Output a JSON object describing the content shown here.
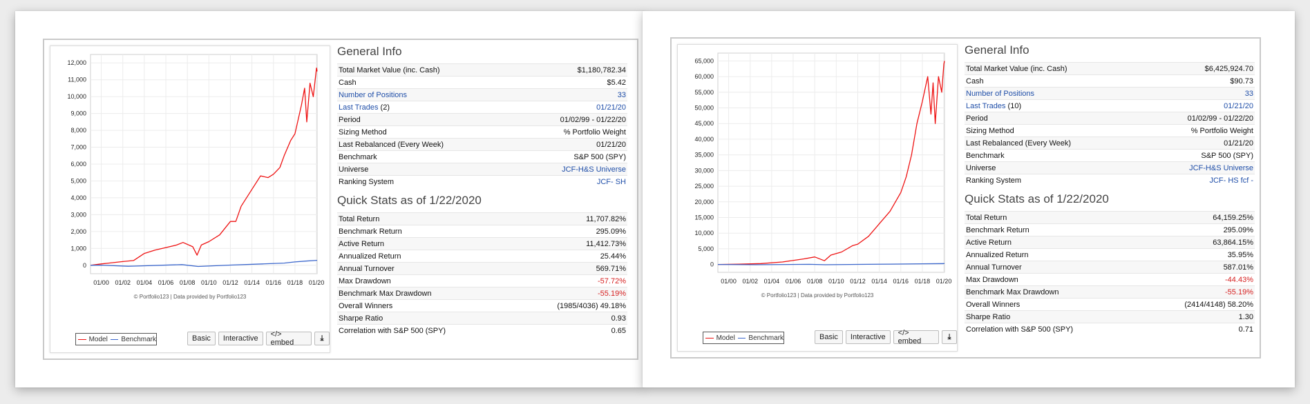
{
  "colors": {
    "model": "#ee1111",
    "benchmark": "#3a66cc",
    "link": "#1f4ea8",
    "negative": "#d62020"
  },
  "portfolios": [
    {
      "general_info": {
        "heading": "General Info",
        "rows": [
          {
            "label": "Total Market Value (inc. Cash)",
            "value": "$1,180,782.34"
          },
          {
            "label": "Cash",
            "value": "$5.42"
          },
          {
            "label": "Number of Positions",
            "value": "33"
          },
          {
            "label": "Last Trades",
            "count": "(2)",
            "value": "01/21/20"
          },
          {
            "label": "Period",
            "value": "01/02/99 - 01/22/20"
          },
          {
            "label": "Sizing Method",
            "value": "% Portfolio Weight"
          },
          {
            "label": "Last Rebalanced (Every Week)",
            "value": "01/21/20"
          },
          {
            "label": "Benchmark",
            "value": "S&P 500 (SPY)"
          },
          {
            "label": "Universe",
            "value": "JCF-H&S Universe"
          },
          {
            "label": "Ranking System",
            "value": "JCF- SH"
          }
        ]
      },
      "quick_stats": {
        "heading": "Quick Stats as of 1/22/2020",
        "rows": [
          {
            "label": "Total Return",
            "value": "11,707.82%"
          },
          {
            "label": "Benchmark Return",
            "value": "295.09%"
          },
          {
            "label": "Active Return",
            "value": "11,412.73%"
          },
          {
            "label": "Annualized Return",
            "value": "25.44%"
          },
          {
            "label": "Annual Turnover",
            "value": "569.71%"
          },
          {
            "label": "Max Drawdown",
            "value": "-57.72%"
          },
          {
            "label": "Benchmark Max Drawdown",
            "value": "-55.19%"
          },
          {
            "label": "Overall Winners",
            "value": "(1985/4036) 49.18%"
          },
          {
            "label": "Sharpe Ratio",
            "value": "0.93"
          },
          {
            "label": "Correlation with S&P 500 (SPY)",
            "value": "0.65"
          }
        ]
      },
      "credit": "© Portfolio123 | Data provided by Portfolio123",
      "legend": {
        "model": "Model",
        "benchmark": "Benchmark"
      },
      "buttons": {
        "basic": "Basic",
        "interactive": "Interactive",
        "embed": "</> embed",
        "download_icon": "download-icon"
      },
      "chart_data": {
        "type": "line",
        "y_ticks": [
          "12,000",
          "11,000",
          "10,000",
          "9,000",
          "8,000",
          "7,000",
          "6,000",
          "5,000",
          "4,000",
          "3,000",
          "2,000",
          "1,000",
          "0"
        ],
        "x_ticks": [
          "01/00",
          "01/02",
          "01/04",
          "01/06",
          "01/08",
          "01/10",
          "01/12",
          "01/14",
          "01/16",
          "01/18",
          "01/20"
        ],
        "ylim": [
          -500,
          12500
        ],
        "xlim": [
          1999.0,
          2020.06
        ],
        "grid": true,
        "legend_position": "bottom-left",
        "series": [
          {
            "name": "Model",
            "x": [
              1999.0,
              2000.0,
              2001.0,
              2002.0,
              2003.0,
              2004.0,
              2005.0,
              2006.0,
              2007.0,
              2007.6,
              2008.5,
              2008.9,
              2009.3,
              2010.0,
              2011.0,
              2012.0,
              2012.5,
              2013.0,
              2014.0,
              2014.8,
              2015.5,
              2016.0,
              2016.6,
              2017.0,
              2017.6,
              2018.0,
              2018.6,
              2018.9,
              2019.1,
              2019.4,
              2019.7,
              2020.0,
              2020.06
            ],
            "y": [
              0,
              80,
              150,
              220,
              280,
              700,
              900,
              1050,
              1200,
              1350,
              1100,
              600,
              1200,
              1400,
              1800,
              2600,
              2600,
              3500,
              4500,
              5300,
              5200,
              5400,
              5800,
              6500,
              7400,
              7800,
              9500,
              10500,
              8500,
              10800,
              10000,
              11700,
              11500
            ]
          },
          {
            "name": "Benchmark",
            "x": [
              1999.0,
              2000.0,
              2002.5,
              2003.0,
              2007.5,
              2009.0,
              2012.0,
              2015.0,
              2017.0,
              2018.0,
              2019.0,
              2020.06
            ],
            "y": [
              0,
              5,
              -60,
              -50,
              40,
              -70,
              10,
              80,
              130,
              200,
              250,
              295
            ]
          }
        ]
      }
    },
    {
      "general_info": {
        "heading": "General Info",
        "rows": [
          {
            "label": "Total Market Value (inc. Cash)",
            "value": "$6,425,924.70"
          },
          {
            "label": "Cash",
            "value": "$90.73"
          },
          {
            "label": "Number of Positions",
            "value": "33"
          },
          {
            "label": "Last Trades",
            "count": "(10)",
            "value": "01/21/20"
          },
          {
            "label": "Period",
            "value": "01/02/99 - 01/22/20"
          },
          {
            "label": "Sizing Method",
            "value": "% Portfolio Weight"
          },
          {
            "label": "Last Rebalanced (Every Week)",
            "value": "01/21/20"
          },
          {
            "label": "Benchmark",
            "value": "S&P 500 (SPY)"
          },
          {
            "label": "Universe",
            "value": "JCF-H&S Universe"
          },
          {
            "label": "Ranking System",
            "value": "JCF- HS fcf -"
          }
        ]
      },
      "quick_stats": {
        "heading": "Quick Stats as of 1/22/2020",
        "rows": [
          {
            "label": "Total Return",
            "value": "64,159.25%"
          },
          {
            "label": "Benchmark Return",
            "value": "295.09%"
          },
          {
            "label": "Active Return",
            "value": "63,864.15%"
          },
          {
            "label": "Annualized Return",
            "value": "35.95%"
          },
          {
            "label": "Annual Turnover",
            "value": "587.01%"
          },
          {
            "label": "Max Drawdown",
            "value": "-44.43%"
          },
          {
            "label": "Benchmark Max Drawdown",
            "value": "-55.19%"
          },
          {
            "label": "Overall Winners",
            "value": "(2414/4148) 58.20%"
          },
          {
            "label": "Sharpe Ratio",
            "value": "1.30"
          },
          {
            "label": "Correlation with S&P 500 (SPY)",
            "value": "0.71"
          }
        ]
      },
      "credit": "© Portfolio123 | Data provided by Portfolio123",
      "legend": {
        "model": "Model",
        "benchmark": "Benchmark"
      },
      "buttons": {
        "basic": "Basic",
        "interactive": "Interactive",
        "embed": "</> embed",
        "download_icon": "download-icon"
      },
      "chart_data": {
        "type": "line",
        "y_ticks": [
          "65,000",
          "60,000",
          "55,000",
          "50,000",
          "45,000",
          "40,000",
          "35,000",
          "30,000",
          "25,000",
          "20,000",
          "15,000",
          "10,000",
          "5,000",
          "0"
        ],
        "x_ticks": [
          "01/00",
          "01/02",
          "01/04",
          "01/06",
          "01/08",
          "01/10",
          "01/12",
          "01/14",
          "01/16",
          "01/18",
          "01/20"
        ],
        "ylim": [
          -2500,
          67500
        ],
        "xlim": [
          1999.0,
          2020.06
        ],
        "grid": true,
        "legend_position": "bottom-left",
        "series": [
          {
            "name": "Model",
            "x": [
              1999.0,
              2001.0,
              2003.0,
              2005.0,
              2007.0,
              2008.0,
              2008.9,
              2009.5,
              2010.5,
              2011.5,
              2012.0,
              2013.0,
              2014.0,
              2015.0,
              2016.0,
              2016.5,
              2017.0,
              2017.5,
              2018.0,
              2018.5,
              2018.8,
              2019.0,
              2019.2,
              2019.5,
              2019.8,
              2020.0,
              2020.06
            ],
            "y": [
              0,
              100,
              300,
              800,
              1800,
              2400,
              1200,
              3000,
              4000,
              6000,
              6500,
              9000,
              13000,
              17000,
              23000,
              28000,
              35000,
              45000,
              52000,
              60000,
              48000,
              58000,
              45000,
              60000,
              55000,
              64000,
              65000
            ]
          },
          {
            "name": "Benchmark",
            "x": [
              1999.0,
              2002.5,
              2007.5,
              2009.0,
              2012.0,
              2015.0,
              2018.0,
              2020.06
            ],
            "y": [
              0,
              -80,
              50,
              -80,
              30,
              120,
              220,
              295
            ]
          }
        ]
      }
    }
  ]
}
